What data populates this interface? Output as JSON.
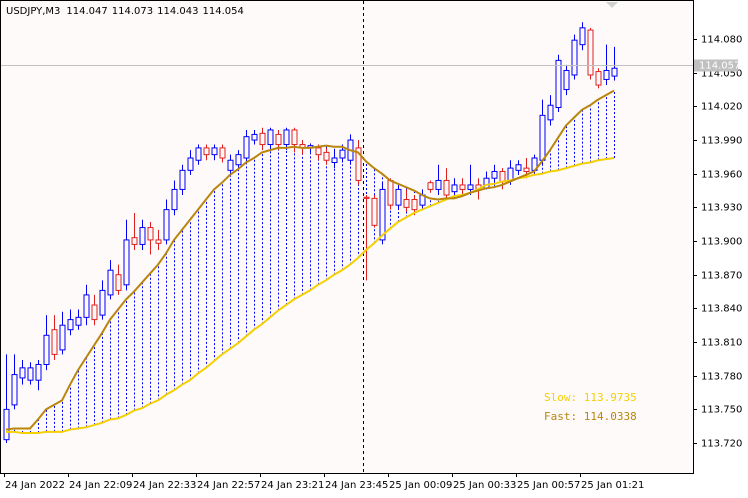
{
  "chart_data": {
    "type": "candlestick",
    "title": "USDJPY,M3",
    "categories": [
      "24 Jan 2022",
      null,
      null,
      null,
      null,
      null,
      null,
      null,
      "24 Jan 22:09",
      null,
      null,
      null,
      null,
      null,
      null,
      null,
      "24 Jan 22:33",
      null,
      null,
      null,
      null,
      null,
      null,
      null,
      "24 Jan 22:57",
      null,
      null,
      null,
      null,
      null,
      null,
      null,
      "24 Jan 23:21",
      null,
      null,
      null,
      null,
      null,
      null,
      null,
      "24 Jan 23:45",
      null,
      null,
      null,
      null,
      null,
      null,
      null,
      "25 Jan 00:09",
      null,
      null,
      null,
      null,
      null,
      null,
      null,
      "25 Jan 00:33",
      null,
      null,
      null,
      null,
      null,
      null,
      null,
      "25 Jan 00:57",
      null,
      null,
      null,
      null,
      null,
      null,
      null,
      "25 Jan 01:21",
      null,
      null,
      null,
      null
    ],
    "open": [
      113.723,
      113.754,
      113.778,
      113.776,
      113.776,
      113.79,
      113.821,
      113.803,
      113.821,
      113.825,
      113.832,
      113.843,
      113.834,
      113.852,
      113.87,
      113.861,
      113.903,
      113.897,
      113.912,
      113.901,
      113.901,
      113.928,
      113.946,
      113.963,
      113.972,
      113.983,
      113.977,
      113.983,
      113.963,
      113.968,
      113.974,
      113.99,
      113.996,
      113.986,
      113.995,
      113.986,
      113.999,
      113.986,
      113.983,
      113.983,
      113.979,
      113.97,
      113.974,
      113.972,
      113.983,
      113.939,
      113.938,
      113.901,
      113.954,
      113.932,
      113.937,
      113.937,
      113.932,
      113.952,
      113.946,
      113.954,
      113.944,
      113.95,
      113.946,
      113.95,
      113.947,
      113.956,
      113.962,
      113.954,
      113.963,
      113.965,
      113.963,
      113.972,
      114.008,
      114.019,
      114.035,
      114.048,
      114.075,
      114.088,
      114.051,
      114.044,
      114.047
    ],
    "high": [
      113.799,
      113.799,
      113.794,
      113.792,
      113.794,
      113.834,
      113.834,
      113.837,
      113.839,
      113.839,
      113.861,
      113.852,
      113.865,
      113.883,
      113.879,
      113.919,
      113.925,
      113.919,
      113.917,
      113.91,
      113.937,
      113.954,
      113.968,
      113.981,
      113.986,
      113.986,
      113.986,
      113.986,
      113.977,
      113.981,
      113.999,
      113.999,
      114.001,
      114.001,
      113.999,
      114.001,
      114.001,
      113.99,
      113.987,
      113.986,
      113.983,
      113.981,
      113.986,
      113.995,
      113.99,
      113.941,
      113.941,
      113.952,
      113.956,
      113.95,
      113.946,
      113.941,
      113.946,
      113.954,
      113.968,
      113.965,
      113.956,
      113.956,
      113.968,
      113.956,
      113.962,
      113.968,
      113.965,
      113.972,
      113.972,
      113.974,
      113.977,
      114.026,
      114.03,
      114.066,
      114.057,
      114.084,
      114.095,
      114.09,
      114.054,
      114.075,
      114.073
    ],
    "low": [
      113.72,
      113.75,
      113.772,
      113.772,
      113.767,
      113.785,
      113.794,
      113.799,
      113.816,
      113.821,
      113.825,
      113.825,
      113.83,
      113.848,
      113.852,
      113.856,
      113.892,
      113.892,
      113.888,
      113.892,
      113.897,
      113.923,
      113.941,
      113.959,
      113.968,
      113.972,
      113.972,
      113.97,
      113.959,
      113.963,
      113.97,
      113.986,
      113.981,
      113.981,
      113.981,
      113.981,
      113.979,
      113.977,
      113.979,
      113.972,
      113.968,
      113.965,
      113.97,
      113.968,
      113.95,
      113.865,
      113.912,
      113.897,
      113.928,
      113.928,
      113.926,
      113.923,
      113.928,
      113.943,
      113.941,
      113.938,
      113.94,
      113.941,
      113.941,
      113.937,
      113.946,
      113.95,
      113.946,
      113.95,
      113.959,
      113.956,
      113.959,
      113.968,
      114.003,
      114.015,
      114.03,
      114.044,
      114.07,
      114.044,
      114.036,
      114.039,
      114.043
    ],
    "close": [
      113.75,
      113.781,
      113.787,
      113.787,
      113.79,
      113.816,
      113.799,
      113.825,
      113.83,
      113.832,
      113.852,
      113.83,
      113.856,
      113.874,
      113.856,
      113.901,
      113.897,
      113.912,
      113.901,
      113.898,
      113.928,
      113.946,
      113.963,
      113.974,
      113.983,
      113.977,
      113.983,
      113.974,
      113.972,
      113.977,
      113.993,
      113.995,
      113.986,
      113.999,
      113.986,
      113.999,
      113.986,
      113.983,
      113.985,
      113.977,
      113.972,
      113.974,
      113.981,
      113.99,
      113.954,
      113.938,
      113.914,
      113.946,
      113.932,
      113.946,
      113.93,
      113.928,
      113.941,
      113.946,
      113.954,
      113.941,
      113.95,
      113.946,
      113.95,
      113.946,
      113.956,
      113.962,
      113.953,
      113.965,
      113.968,
      113.962,
      113.974,
      114.012,
      114.021,
      114.061,
      114.052,
      114.079,
      114.09,
      114.048,
      114.039,
      114.052,
      114.054
    ],
    "up_color": "#0000ff",
    "down_color": "#e02020",
    "series": [
      {
        "name": "Slow: 113.9735",
        "color": "#f5d000",
        "values": [
          113.73,
          113.73,
          113.729,
          113.729,
          113.729,
          113.73,
          113.73,
          113.73,
          113.732,
          113.733,
          113.734,
          113.736,
          113.738,
          113.741,
          113.742,
          113.745,
          113.749,
          113.751,
          113.755,
          113.758,
          113.763,
          113.767,
          113.772,
          113.776,
          113.782,
          113.787,
          113.793,
          113.799,
          113.804,
          113.809,
          113.815,
          113.821,
          113.826,
          113.832,
          113.838,
          113.843,
          113.848,
          113.852,
          113.856,
          113.861,
          113.865,
          113.87,
          113.874,
          113.879,
          113.885,
          113.892,
          113.898,
          113.905,
          113.911,
          113.917,
          113.921,
          113.925,
          113.928,
          113.931,
          113.934,
          113.937,
          113.94,
          113.941,
          113.943,
          113.946,
          113.95,
          113.951,
          113.953,
          113.954,
          113.956,
          113.957,
          113.959,
          113.96,
          113.962,
          113.963,
          113.965,
          113.967,
          113.969,
          113.97,
          113.972,
          113.973,
          113.974
        ]
      },
      {
        "name": "Fast: 114.0338",
        "color": "#b8860b",
        "values": [
          113.732,
          113.733,
          113.733,
          113.733,
          113.741,
          113.75,
          113.754,
          113.758,
          113.772,
          113.785,
          113.796,
          113.807,
          113.818,
          113.83,
          113.839,
          113.848,
          113.855,
          113.863,
          113.871,
          113.879,
          113.889,
          113.901,
          113.91,
          113.919,
          113.928,
          113.937,
          113.946,
          113.952,
          113.959,
          113.964,
          113.97,
          113.974,
          113.979,
          113.981,
          113.983,
          113.983,
          113.984,
          113.983,
          113.983,
          113.984,
          113.985,
          113.984,
          113.984,
          113.981,
          113.979,
          113.971,
          113.965,
          113.96,
          113.954,
          113.951,
          113.948,
          113.945,
          113.941,
          113.938,
          113.937,
          113.938,
          113.938,
          113.94,
          113.943,
          113.945,
          113.947,
          113.948,
          113.95,
          113.953,
          113.956,
          113.959,
          113.962,
          113.971,
          113.981,
          113.992,
          114.003,
          114.01,
          114.017,
          114.021,
          114.026,
          114.03,
          114.034
        ]
      }
    ],
    "fill_color": "#0000ff",
    "price_line": 114.057,
    "ylim": [
      113.6933,
      114.1148
    ],
    "yticks": [
      {
        "value": 114.08,
        "label": "114.080"
      },
      {
        "value": 114.05,
        "label": "114.050"
      },
      {
        "value": 114.02,
        "label": "114.020"
      },
      {
        "value": 113.99,
        "label": "113.990"
      },
      {
        "value": 113.96,
        "label": "113.960"
      },
      {
        "value": 113.93,
        "label": "113.930"
      },
      {
        "value": 113.9,
        "label": "113.900"
      },
      {
        "value": 113.87,
        "label": "113.870"
      },
      {
        "value": 113.84,
        "label": "113.840"
      },
      {
        "value": 113.81,
        "label": "113.810"
      },
      {
        "value": 113.78,
        "label": "113.780"
      },
      {
        "value": 113.75,
        "label": "113.750"
      },
      {
        "value": 113.72,
        "label": "113.720"
      }
    ]
  }
}
